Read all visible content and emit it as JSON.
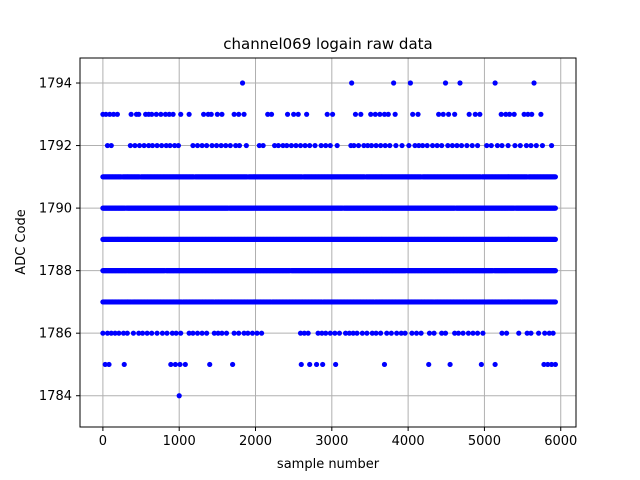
{
  "chart_data": {
    "type": "scatter",
    "title": "channel069 logain raw data",
    "xlabel": "sample number",
    "ylabel": "ADC Code",
    "xlim": [
      -300,
      6200
    ],
    "ylim": [
      1783.0,
      1794.8
    ],
    "xticks": [
      0,
      1000,
      2000,
      3000,
      4000,
      5000,
      6000
    ],
    "yticks": [
      1784,
      1786,
      1788,
      1790,
      1792,
      1794
    ],
    "grid": true,
    "marker_color": "#0000ff",
    "series": [
      {
        "n_samples": 5930,
        "levels": [
          {
            "y": 1794,
            "x": [
              1830,
              3260,
              3810,
              4030,
              4490,
              4680,
              5140,
              5650
            ]
          },
          {
            "y": 1793,
            "x": [
              0,
              40,
              90,
              140,
              190,
              370,
              440,
              470,
              560,
              600,
              640,
              700,
              760,
              820,
              870,
              920,
              1020,
              1130,
              1320,
              1380,
              1420,
              1500,
              1560,
              1720,
              1780,
              1850,
              2160,
              2210,
              2420,
              2500,
              2560,
              2670,
              2940,
              3010,
              3310,
              3380,
              3510,
              3570,
              3630,
              3690,
              3740,
              3830,
              4060,
              4130,
              4400,
              4460,
              4530,
              4610,
              4800,
              4880,
              4940,
              5220,
              5280,
              5330,
              5390,
              5520,
              5570,
              5620,
              5740
            ]
          },
          {
            "y": 1792,
            "x": [
              60,
              110,
              360,
              420,
              480,
              540,
              600,
              650,
              710,
              770,
              830,
              880,
              940,
              990,
              1180,
              1240,
              1300,
              1360,
              1430,
              1490,
              1550,
              1610,
              1670,
              1740,
              1790,
              1880,
              2050,
              2100,
              2250,
              2300,
              2360,
              2410,
              2470,
              2530,
              2590,
              2650,
              2710,
              2780,
              2860,
              2920,
              2980,
              3070,
              3250,
              3290,
              3350,
              3420,
              3470,
              3520,
              3580,
              3640,
              3700,
              3760,
              3840,
              3920,
              4010,
              4090,
              4140,
              4190,
              4250,
              4320,
              4380,
              4440,
              4520,
              4580,
              4640,
              4700,
              4770,
              4840,
              4910,
              5030,
              5090,
              5170,
              5230,
              5310,
              5400,
              5470,
              5550,
              5610,
              5680,
              5760,
              5880
            ]
          },
          {
            "y": 1791,
            "dense": true,
            "x_range": [
              0,
              5930
            ],
            "gaps": [
              250,
              490,
              1200,
              1900,
              2620,
              3440,
              4180,
              4960,
              5570
            ]
          },
          {
            "y": 1790,
            "dense": true,
            "x_range": [
              0,
              5930
            ],
            "gaps": [
              300,
              1650,
              3150,
              4620,
              5400
            ]
          },
          {
            "y": 1789,
            "dense": true,
            "x_range": [
              0,
              5930
            ],
            "gaps": []
          },
          {
            "y": 1788,
            "dense": true,
            "x_range": [
              0,
              5930
            ],
            "gaps": [
              820,
              2460,
              3980,
              5120
            ]
          },
          {
            "y": 1787,
            "dense": true,
            "x_range": [
              0,
              5930
            ],
            "gaps": [
              380,
              1040,
              1460,
              2210,
              2880,
              3560,
              4340,
              5020,
              5490
            ]
          },
          {
            "y": 1786,
            "x": [
              0,
              60,
              110,
              160,
              210,
              270,
              320,
              400,
              470,
              520,
              580,
              640,
              710,
              780,
              840,
              910,
              960,
              1020,
              1130,
              1180,
              1240,
              1300,
              1360,
              1460,
              1510,
              1560,
              1620,
              1720,
              1780,
              1850,
              1900,
              1960,
              2020,
              2080,
              2590,
              2640,
              2690,
              2820,
              2870,
              2920,
              2980,
              3040,
              3100,
              3180,
              3230,
              3280,
              3330,
              3400,
              3460,
              3530,
              3580,
              3640,
              3720,
              3780,
              3850,
              3910,
              3960,
              4050,
              4110,
              4170,
              4280,
              4340,
              4440,
              4490,
              4610,
              4660,
              4720,
              4790,
              4850,
              4910,
              4980,
              5230,
              5290,
              5450,
              5560,
              5610,
              5710,
              5790,
              5850,
              5900
            ]
          },
          {
            "y": 1785,
            "x": [
              30,
              80,
              280,
              890,
              950,
              1010,
              1080,
              1400,
              1700,
              2600,
              2710,
              2800,
              2880,
              3050,
              3690,
              4270,
              4550,
              4960,
              5140,
              5780,
              5830,
              5880,
              5930
            ]
          },
          {
            "y": 1784,
            "x": [
              1000
            ]
          }
        ]
      }
    ]
  }
}
